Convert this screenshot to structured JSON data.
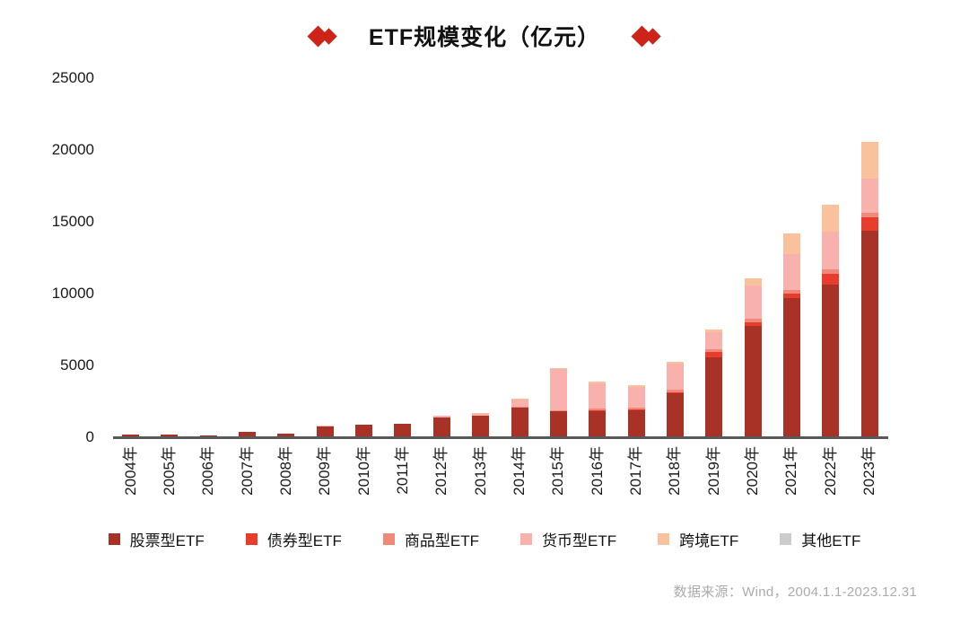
{
  "title": {
    "text": "ETF规模变化（亿元）",
    "decoration": "double-red-diamonds",
    "diamond_color": "#ce2318"
  },
  "chart_data": {
    "type": "bar",
    "stacked": true,
    "title": "ETF规模变化（亿元）",
    "xlabel": "",
    "ylabel": "",
    "ylim": [
      0,
      25000
    ],
    "yticks": [
      0,
      5000,
      10000,
      15000,
      20000,
      25000
    ],
    "grid": false,
    "legend_position": "bottom",
    "categories": [
      "2004年",
      "2005年",
      "2006年",
      "2007年",
      "2008年",
      "2009年",
      "2010年",
      "2011年",
      "2012年",
      "2013年",
      "2014年",
      "2015年",
      "2016年",
      "2017年",
      "2018年",
      "2019年",
      "2020年",
      "2021年",
      "2022年",
      "2023年"
    ],
    "series": [
      {
        "name": "股票型ETF",
        "color": "#a93226",
        "values": [
          180,
          170,
          150,
          400,
          270,
          750,
          900,
          950,
          1400,
          1500,
          2050,
          1800,
          1790,
          1900,
          3050,
          5550,
          7750,
          9700,
          10650,
          14380
        ]
      },
      {
        "name": "债券型ETF",
        "color": "#e83c2d",
        "values": [
          0,
          0,
          0,
          0,
          0,
          0,
          0,
          0,
          0,
          0,
          0,
          0,
          90,
          50,
          100,
          400,
          270,
          310,
          730,
          940
        ]
      },
      {
        "name": "商品型ETF",
        "color": "#f1897b",
        "values": [
          0,
          0,
          0,
          0,
          0,
          0,
          0,
          0,
          0,
          0,
          60,
          60,
          100,
          100,
          150,
          200,
          250,
          250,
          300,
          310
        ]
      },
      {
        "name": "货币型ETF",
        "color": "#f8b1ac",
        "values": [
          0,
          0,
          0,
          0,
          0,
          0,
          0,
          0,
          120,
          140,
          500,
          2900,
          1800,
          1450,
          1850,
          1180,
          2280,
          2480,
          2620,
          2400
        ]
      },
      {
        "name": "跨境ETF",
        "color": "#fac29c",
        "values": [
          0,
          0,
          0,
          0,
          0,
          50,
          0,
          0,
          0,
          50,
          80,
          50,
          100,
          100,
          100,
          150,
          520,
          1450,
          1870,
          2510
        ]
      },
      {
        "name": "其他ETF",
        "color": "#cccccc",
        "values": [
          0,
          0,
          0,
          0,
          0,
          0,
          0,
          0,
          0,
          0,
          0,
          0,
          0,
          0,
          0,
          0,
          0,
          0,
          0,
          0
        ]
      }
    ],
    "totals": [
      180,
      170,
      150,
      400,
      270,
      800,
      900,
      950,
      1520,
      1690,
      2690,
      4810,
      3880,
      3600,
      5250,
      7480,
      11070,
      14190,
      16170,
      20540
    ]
  },
  "axis_color": "#595959",
  "footer": {
    "source_note": "数据来源：Wind，2004.1.1-2023.12.31"
  }
}
